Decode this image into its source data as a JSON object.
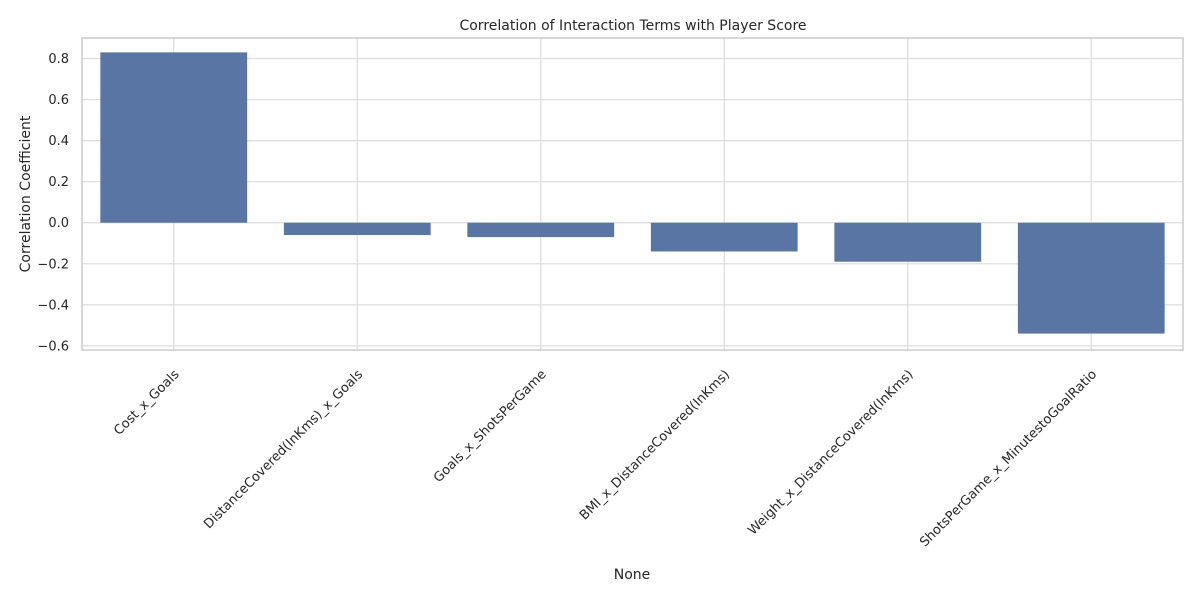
{
  "chart_data": {
    "type": "bar",
    "title": "Correlation of Interaction Terms with Player Score",
    "xlabel": "None",
    "ylabel": "Correlation Coefficient",
    "categories": [
      "Cost_x_Goals",
      "DistanceCovered(InKms)_x_Goals",
      "Goals_x_ShotsPerGame",
      "BMI_x_DistanceCovered(InKms)",
      "Weight_x_DistanceCovered(InKms)",
      "ShotsPerGame_x_MinutestoGoalRatio"
    ],
    "values": [
      0.83,
      -0.06,
      -0.07,
      -0.14,
      -0.19,
      -0.54
    ],
    "ylim": [
      -0.62,
      0.9
    ],
    "yticks": [
      -0.6,
      -0.4,
      -0.2,
      0.0,
      0.2,
      0.4,
      0.6,
      0.8
    ],
    "ytick_labels": [
      "−0.6",
      "−0.4",
      "−0.2",
      "0.0",
      "0.2",
      "0.4",
      "0.6",
      "0.8"
    ],
    "bar_color": "#5875a4",
    "grid": true,
    "legend": "none"
  }
}
